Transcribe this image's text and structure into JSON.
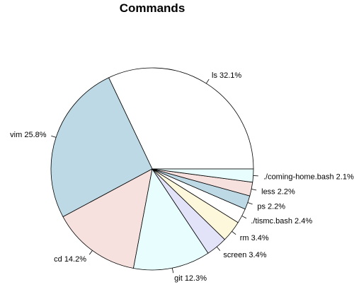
{
  "chart_data": {
    "type": "pie",
    "title": "Commands",
    "slices": [
      {
        "label": "ls 32.1%",
        "value": 32.1,
        "color": "#ffffff"
      },
      {
        "label": "vim 25.8%",
        "value": 25.8,
        "color": "#bcd9e5"
      },
      {
        "label": "cd 14.2%",
        "value": 14.2,
        "color": "#f6e1df"
      },
      {
        "label": "git 12.3%",
        "value": 12.3,
        "color": "#e8fdfd"
      },
      {
        "label": "screen 3.4%",
        "value": 3.4,
        "color": "#e2e2f8"
      },
      {
        "label": "rm 3.4%",
        "value": 3.4,
        "color": "#fdf8dc"
      },
      {
        "label": "./tismc.bash 2.4%",
        "value": 2.4,
        "color": "#ffffff"
      },
      {
        "label": "ps 2.2%",
        "value": 2.2,
        "color": "#bcd9e5"
      },
      {
        "label": "less 2.2%",
        "value": 2.2,
        "color": "#f6e1df"
      },
      {
        "label": "./coming-home.bash 2.1%",
        "value": 2.1,
        "color": "#e8fdfd"
      }
    ],
    "direction": "counterclockwise",
    "start_angle_deg": 0
  }
}
